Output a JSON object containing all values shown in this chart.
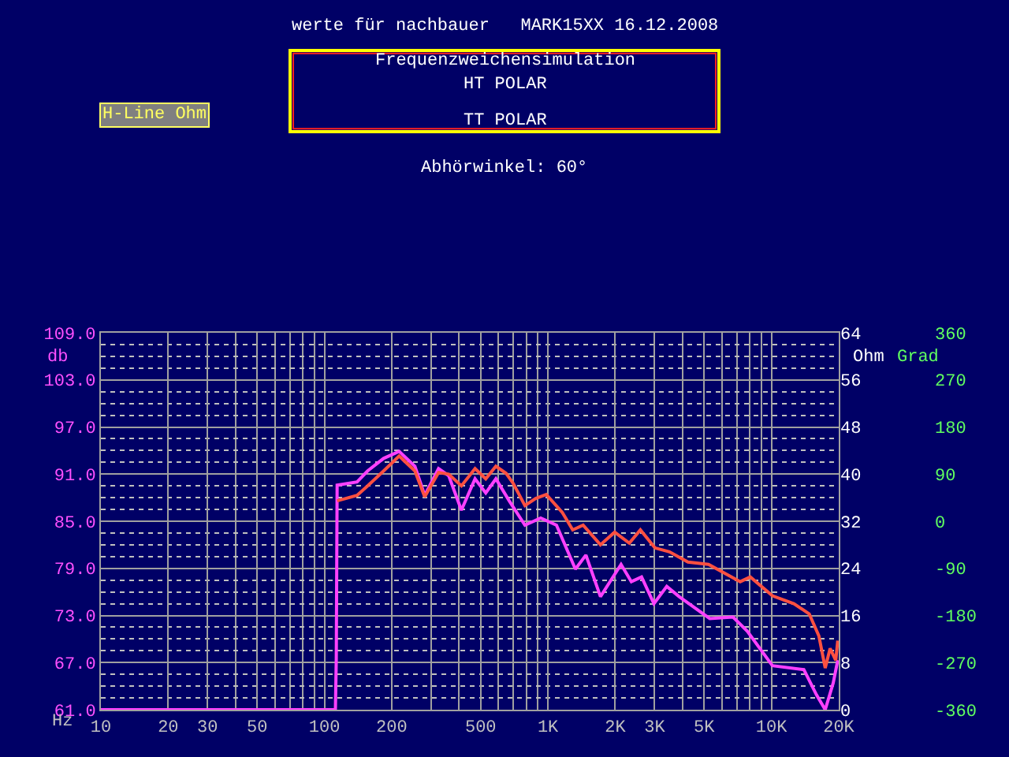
{
  "chart_data": {
    "type": "line",
    "title": "werte für nachbauer   MARK15XX 16.12.2008",
    "subtitle": "Abhörwinkel: 60°",
    "annotations": [
      "Frequenzweichensimulation",
      "HT POLAR",
      "TT POLAR",
      "H-Line Ohm"
    ],
    "xlabel": "Hz",
    "ylabel": "db",
    "y2label": "Ohm",
    "y3label": "Grad",
    "xlim": [
      10,
      20000
    ],
    "xticks": [
      10,
      20,
      30,
      50,
      100,
      200,
      500,
      {
        "value": 1000,
        "label": "1K"
      },
      {
        "value": 2000,
        "label": "2K"
      },
      {
        "value": 3000,
        "label": "3K"
      },
      {
        "value": 5000,
        "label": "5K"
      },
      {
        "value": 10000,
        "label": "10K"
      },
      {
        "value": 20000,
        "label": "20K"
      }
    ],
    "ylim": [
      61,
      109
    ],
    "yticks": [
      {
        "value": 61,
        "label": "61.0"
      },
      {
        "value": 67,
        "label": "67.0"
      },
      {
        "value": 73,
        "label": "73.0"
      },
      {
        "value": 79,
        "label": "79.0"
      },
      {
        "value": 85,
        "label": "85.0"
      },
      {
        "value": 91,
        "label": "91.0"
      },
      {
        "value": 97,
        "label": "97.0"
      },
      {
        "value": 103,
        "label": "103.0"
      },
      {
        "value": 109,
        "label": "109.0"
      }
    ],
    "y2lim": [
      0,
      64
    ],
    "y2ticks": [
      0,
      8,
      16,
      24,
      32,
      40,
      48,
      56,
      64
    ],
    "y3lim": [
      -360,
      360
    ],
    "y3ticks": [
      -360,
      -270,
      -180,
      -90,
      0,
      90,
      180,
      270,
      360
    ],
    "log": "x",
    "grid": true,
    "marker": "none",
    "line_style": "solid",
    "series": [
      {
        "color": "#ff40ff",
        "x": [
          10,
          112,
          113,
          114,
          140,
          156,
          184,
          216,
          254,
          281,
          324,
          360,
          410,
          472,
          527,
          585,
          671,
          789,
          928,
          1092,
          1327,
          1479,
          1718,
          2124,
          2362,
          2624,
          2980,
          3401,
          3864,
          5297,
          6730,
          7790,
          10100,
          13960,
          15900,
          17400,
          18900,
          19800
        ],
        "values": [
          61,
          61,
          67.5,
          89.6,
          90.0,
          91.4,
          93.0,
          93.9,
          92.0,
          88.3,
          91.7,
          90.8,
          86.4,
          90.4,
          88.6,
          90.4,
          87.6,
          84.5,
          85.4,
          84.5,
          78.9,
          80.7,
          75.4,
          79.5,
          77.3,
          77.9,
          74.5,
          76.7,
          75.4,
          72.6,
          72.8,
          71.0,
          66.6,
          66.1,
          62.9,
          61.0,
          64.4,
          67.3
        ]
      },
      {
        "color": "#ff5040",
        "x": [
          114,
          140,
          156,
          184,
          216,
          254,
          281,
          324,
          360,
          410,
          472,
          527,
          585,
          650,
          700,
          789,
          882,
          983,
          1160,
          1291,
          1437,
          1718,
          1989,
          2313,
          2592,
          3012,
          3498,
          4231,
          5230,
          7250,
          8040,
          10100,
          12600,
          14760,
          16300,
          17400,
          18300,
          19400,
          19800
        ],
        "values": [
          87.6,
          88.3,
          89.5,
          91.4,
          93.3,
          91.4,
          88.1,
          91.2,
          91.0,
          89.5,
          91.7,
          90.4,
          92.0,
          91.1,
          89.8,
          87.0,
          87.9,
          88.4,
          86.1,
          83.9,
          84.5,
          82.0,
          83.6,
          82.2,
          83.9,
          81.6,
          81.1,
          79.8,
          79.5,
          77.3,
          77.9,
          75.5,
          74.5,
          73.2,
          70.4,
          66.3,
          68.8,
          67.3,
          69.8
        ]
      }
    ]
  }
}
